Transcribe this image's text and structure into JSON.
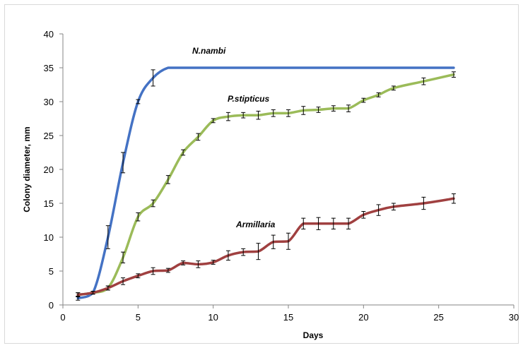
{
  "chart_data": {
    "type": "line",
    "title": "",
    "xlabel": "Days",
    "ylabel": "Colony diameter, mm",
    "xlim": [
      0,
      30
    ],
    "ylim": [
      0,
      40
    ],
    "xticks": [
      0,
      5,
      10,
      15,
      20,
      25,
      30
    ],
    "yticks": [
      0,
      5,
      10,
      15,
      20,
      25,
      30,
      35,
      40
    ],
    "grid": false,
    "legend": "none (series labelled inline)",
    "series": [
      {
        "name": "N.nambi",
        "color": "#4472c4",
        "x": [
          1,
          2,
          3,
          4,
          5,
          6,
          7,
          8,
          10,
          15,
          20,
          26
        ],
        "y": [
          1.0,
          1.8,
          10.0,
          21.0,
          30.0,
          33.5,
          35.0,
          35.0,
          35.0,
          35.0,
          35.0,
          35.0
        ],
        "err": [
          0.3,
          0.2,
          1.7,
          1.5,
          0.3,
          1.2,
          0,
          0,
          0,
          0,
          0,
          0
        ]
      },
      {
        "name": "P.stipticus",
        "color": "#9bbb59",
        "x": [
          1,
          2,
          3,
          4,
          5,
          6,
          7,
          8,
          9,
          10,
          11,
          12,
          13,
          14,
          15,
          16,
          17,
          18,
          19,
          20,
          21,
          22,
          24,
          26
        ],
        "y": [
          1.5,
          1.8,
          2.5,
          7.0,
          13.0,
          15.0,
          18.5,
          22.5,
          24.8,
          27.2,
          27.8,
          28.0,
          28.0,
          28.3,
          28.3,
          28.7,
          28.8,
          29.0,
          29.0,
          30.2,
          31.0,
          32.0,
          33.0,
          34.0
        ],
        "err": [
          0.3,
          0.2,
          0.3,
          0.8,
          0.6,
          0.5,
          0.6,
          0.4,
          0.5,
          0.3,
          0.6,
          0.4,
          0.6,
          0.5,
          0.5,
          0.6,
          0.4,
          0.4,
          0.5,
          0.3,
          0.3,
          0.3,
          0.5,
          0.4
        ]
      },
      {
        "name": "Armillaria",
        "color": "#a04040",
        "x": [
          1,
          2,
          3,
          4,
          5,
          6,
          7,
          8,
          9,
          10,
          11,
          12,
          13,
          14,
          15,
          16,
          17,
          18,
          19,
          20,
          21,
          22,
          24,
          26
        ],
        "y": [
          1.5,
          1.8,
          2.5,
          3.5,
          4.3,
          5.0,
          5.1,
          6.2,
          6.0,
          6.3,
          7.3,
          7.8,
          7.9,
          9.3,
          9.4,
          12.0,
          12.0,
          12.0,
          12.0,
          13.3,
          14.0,
          14.5,
          15.0,
          15.7
        ],
        "err": [
          0.3,
          0.2,
          0.3,
          0.5,
          0.3,
          0.5,
          0.3,
          0.3,
          0.5,
          0.3,
          0.7,
          0.5,
          1.2,
          1.0,
          1.2,
          0.8,
          0.9,
          0.8,
          0.8,
          0.5,
          0.8,
          0.5,
          0.9,
          0.7
        ]
      }
    ]
  }
}
